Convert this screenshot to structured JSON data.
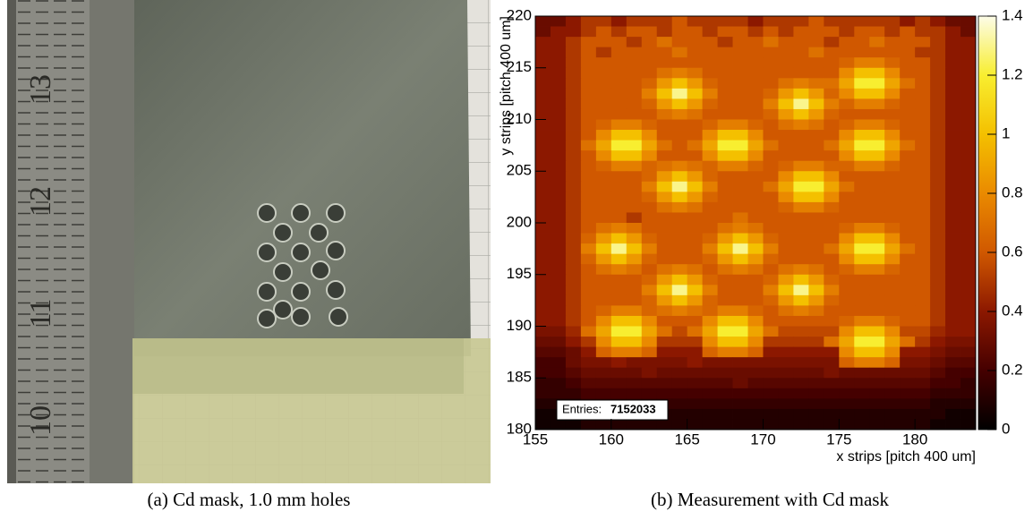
{
  "photo": {
    "ruler_labels": [
      "13",
      "12",
      "11",
      "10"
    ],
    "caption": "(a) Cd mask, 1.0 mm holes"
  },
  "chart_data": {
    "type": "heatmap",
    "caption": "(b) Measurement with Cd mask",
    "x_label": "x strips [pitch 400 um]",
    "y_label": "y strips [pitch 400 um]",
    "xlim": [
      155,
      184
    ],
    "ylim": [
      180,
      220
    ],
    "xticks": [
      155,
      160,
      165,
      170,
      175,
      180
    ],
    "yticks": [
      180,
      185,
      190,
      195,
      200,
      205,
      210,
      215,
      220
    ],
    "zlim": [
      0,
      1.4
    ],
    "zticks": [
      0,
      0.2,
      0.4,
      0.6,
      0.8,
      1,
      1.2,
      1.4
    ],
    "colorscale": [
      "#000000",
      "#450000",
      "#8c1800",
      "#d05800",
      "#ea8a00",
      "#f4c000",
      "#f8ee30",
      "#fcfce8"
    ],
    "stats_label": "Entries:",
    "entries": 7152033,
    "z": [
      [
        0.3,
        0.3,
        0.4,
        0.5,
        0.5,
        0.4,
        0.5,
        0.5,
        0.5,
        0.6,
        0.5,
        0.5,
        0.5,
        0.5,
        0.4,
        0.5,
        0.5,
        0.5,
        0.6,
        0.5,
        0.5,
        0.5,
        0.5,
        0.5,
        0.4,
        0.5,
        0.4,
        0.3,
        0.3
      ],
      [
        0.3,
        0.4,
        0.4,
        0.5,
        0.6,
        0.5,
        0.6,
        0.6,
        0.5,
        0.6,
        0.6,
        0.5,
        0.6,
        0.6,
        0.5,
        0.6,
        0.5,
        0.6,
        0.6,
        0.6,
        0.5,
        0.6,
        0.6,
        0.5,
        0.6,
        0.5,
        0.5,
        0.4,
        0.3
      ],
      [
        0.4,
        0.4,
        0.5,
        0.6,
        0.6,
        0.6,
        0.5,
        0.6,
        0.7,
        0.6,
        0.6,
        0.6,
        0.5,
        0.6,
        0.6,
        0.7,
        0.6,
        0.6,
        0.6,
        0.5,
        0.6,
        0.6,
        0.7,
        0.6,
        0.6,
        0.6,
        0.5,
        0.4,
        0.4
      ],
      [
        0.4,
        0.4,
        0.5,
        0.6,
        0.5,
        0.6,
        0.6,
        0.6,
        0.6,
        0.7,
        0.6,
        0.6,
        0.6,
        0.6,
        0.6,
        0.6,
        0.6,
        0.6,
        0.7,
        0.6,
        0.6,
        0.6,
        0.6,
        0.6,
        0.6,
        0.5,
        0.5,
        0.4,
        0.4
      ],
      [
        0.4,
        0.4,
        0.5,
        0.6,
        0.6,
        0.6,
        0.6,
        0.6,
        0.6,
        0.6,
        0.6,
        0.6,
        0.6,
        0.6,
        0.6,
        0.6,
        0.6,
        0.6,
        0.6,
        0.6,
        0.65,
        0.75,
        0.75,
        0.65,
        0.6,
        0.6,
        0.5,
        0.4,
        0.4
      ],
      [
        0.4,
        0.4,
        0.5,
        0.6,
        0.6,
        0.6,
        0.6,
        0.6,
        0.7,
        0.75,
        0.7,
        0.6,
        0.6,
        0.6,
        0.6,
        0.6,
        0.6,
        0.6,
        0.6,
        0.6,
        0.8,
        1.0,
        1.0,
        0.8,
        0.6,
        0.6,
        0.5,
        0.4,
        0.4
      ],
      [
        0.4,
        0.4,
        0.5,
        0.6,
        0.6,
        0.6,
        0.6,
        0.65,
        0.85,
        1.0,
        0.85,
        0.65,
        0.6,
        0.6,
        0.6,
        0.6,
        0.7,
        0.75,
        0.7,
        0.7,
        0.9,
        1.2,
        1.2,
        0.9,
        0.7,
        0.6,
        0.5,
        0.4,
        0.4
      ],
      [
        0.4,
        0.4,
        0.5,
        0.6,
        0.6,
        0.6,
        0.6,
        0.75,
        1.0,
        1.3,
        1.0,
        0.75,
        0.6,
        0.6,
        0.6,
        0.65,
        0.85,
        1.0,
        0.85,
        0.65,
        0.8,
        1.0,
        1.0,
        0.8,
        0.6,
        0.6,
        0.5,
        0.4,
        0.4
      ],
      [
        0.4,
        0.4,
        0.5,
        0.6,
        0.6,
        0.6,
        0.6,
        0.65,
        0.85,
        1.0,
        0.85,
        0.65,
        0.6,
        0.6,
        0.6,
        0.75,
        1.0,
        1.3,
        1.0,
        0.75,
        0.65,
        0.75,
        0.75,
        0.65,
        0.6,
        0.6,
        0.5,
        0.4,
        0.4
      ],
      [
        0.4,
        0.4,
        0.5,
        0.6,
        0.6,
        0.6,
        0.6,
        0.6,
        0.7,
        0.75,
        0.7,
        0.6,
        0.6,
        0.6,
        0.6,
        0.65,
        0.85,
        1.0,
        0.85,
        0.65,
        0.6,
        0.6,
        0.6,
        0.6,
        0.6,
        0.6,
        0.5,
        0.4,
        0.4
      ],
      [
        0.4,
        0.4,
        0.5,
        0.6,
        0.65,
        0.75,
        0.75,
        0.65,
        0.6,
        0.6,
        0.6,
        0.65,
        0.75,
        0.75,
        0.65,
        0.6,
        0.7,
        0.75,
        0.7,
        0.6,
        0.65,
        0.75,
        0.75,
        0.65,
        0.6,
        0.6,
        0.5,
        0.4,
        0.4
      ],
      [
        0.4,
        0.4,
        0.5,
        0.6,
        0.8,
        1.0,
        1.0,
        0.8,
        0.6,
        0.6,
        0.6,
        0.8,
        1.0,
        1.0,
        0.8,
        0.6,
        0.6,
        0.6,
        0.6,
        0.6,
        0.8,
        1.0,
        1.0,
        0.8,
        0.6,
        0.6,
        0.5,
        0.4,
        0.4
      ],
      [
        0.4,
        0.4,
        0.5,
        0.7,
        0.9,
        1.2,
        1.2,
        0.9,
        0.7,
        0.6,
        0.7,
        0.9,
        1.2,
        1.2,
        0.9,
        0.7,
        0.6,
        0.6,
        0.6,
        0.7,
        0.9,
        1.2,
        1.2,
        0.9,
        0.7,
        0.6,
        0.5,
        0.4,
        0.4
      ],
      [
        0.4,
        0.4,
        0.5,
        0.6,
        0.8,
        1.0,
        1.0,
        0.8,
        0.6,
        0.6,
        0.6,
        0.8,
        1.0,
        1.0,
        0.8,
        0.6,
        0.6,
        0.6,
        0.6,
        0.6,
        0.8,
        1.0,
        1.0,
        0.8,
        0.6,
        0.6,
        0.5,
        0.4,
        0.4
      ],
      [
        0.4,
        0.4,
        0.5,
        0.6,
        0.65,
        0.75,
        0.75,
        0.65,
        0.7,
        0.75,
        0.7,
        0.65,
        0.75,
        0.75,
        0.65,
        0.6,
        0.65,
        0.75,
        0.75,
        0.65,
        0.65,
        0.75,
        0.75,
        0.65,
        0.6,
        0.6,
        0.5,
        0.4,
        0.4
      ],
      [
        0.4,
        0.4,
        0.5,
        0.6,
        0.6,
        0.6,
        0.6,
        0.65,
        0.85,
        1.0,
        0.85,
        0.65,
        0.6,
        0.6,
        0.6,
        0.6,
        0.8,
        1.0,
        1.0,
        0.8,
        0.6,
        0.6,
        0.6,
        0.6,
        0.6,
        0.6,
        0.5,
        0.4,
        0.4
      ],
      [
        0.4,
        0.4,
        0.5,
        0.6,
        0.6,
        0.6,
        0.6,
        0.75,
        1.0,
        1.3,
        1.0,
        0.75,
        0.6,
        0.6,
        0.6,
        0.7,
        0.9,
        1.2,
        1.2,
        0.9,
        0.7,
        0.6,
        0.6,
        0.6,
        0.6,
        0.6,
        0.5,
        0.4,
        0.4
      ],
      [
        0.4,
        0.4,
        0.5,
        0.6,
        0.6,
        0.6,
        0.6,
        0.65,
        0.85,
        1.0,
        0.85,
        0.65,
        0.6,
        0.6,
        0.6,
        0.6,
        0.8,
        1.0,
        1.0,
        0.8,
        0.6,
        0.6,
        0.6,
        0.6,
        0.6,
        0.6,
        0.5,
        0.4,
        0.4
      ],
      [
        0.4,
        0.4,
        0.5,
        0.6,
        0.6,
        0.6,
        0.6,
        0.6,
        0.7,
        0.75,
        0.7,
        0.6,
        0.6,
        0.6,
        0.6,
        0.6,
        0.65,
        0.75,
        0.75,
        0.65,
        0.6,
        0.6,
        0.6,
        0.6,
        0.6,
        0.6,
        0.5,
        0.4,
        0.4
      ],
      [
        0.4,
        0.4,
        0.5,
        0.6,
        0.6,
        0.6,
        0.5,
        0.6,
        0.6,
        0.6,
        0.6,
        0.6,
        0.6,
        0.7,
        0.6,
        0.6,
        0.6,
        0.6,
        0.6,
        0.6,
        0.6,
        0.6,
        0.6,
        0.6,
        0.6,
        0.6,
        0.5,
        0.4,
        0.4
      ],
      [
        0.4,
        0.4,
        0.5,
        0.6,
        0.7,
        0.75,
        0.7,
        0.6,
        0.6,
        0.6,
        0.6,
        0.6,
        0.7,
        0.75,
        0.7,
        0.6,
        0.6,
        0.6,
        0.6,
        0.6,
        0.65,
        0.75,
        0.75,
        0.65,
        0.6,
        0.6,
        0.5,
        0.4,
        0.4
      ],
      [
        0.4,
        0.4,
        0.5,
        0.65,
        0.85,
        1.0,
        0.85,
        0.65,
        0.6,
        0.6,
        0.6,
        0.65,
        0.85,
        1.0,
        0.85,
        0.65,
        0.6,
        0.6,
        0.6,
        0.6,
        0.8,
        1.0,
        1.0,
        0.8,
        0.6,
        0.6,
        0.5,
        0.4,
        0.4
      ],
      [
        0.4,
        0.4,
        0.5,
        0.75,
        1.0,
        1.3,
        1.0,
        0.75,
        0.6,
        0.6,
        0.6,
        0.75,
        1.0,
        1.3,
        1.0,
        0.75,
        0.6,
        0.6,
        0.6,
        0.7,
        0.9,
        1.2,
        1.2,
        0.9,
        0.7,
        0.6,
        0.5,
        0.4,
        0.4
      ],
      [
        0.4,
        0.4,
        0.5,
        0.65,
        0.85,
        1.0,
        0.85,
        0.65,
        0.6,
        0.6,
        0.6,
        0.65,
        0.85,
        1.0,
        0.85,
        0.65,
        0.6,
        0.6,
        0.6,
        0.6,
        0.8,
        1.0,
        1.0,
        0.8,
        0.6,
        0.6,
        0.5,
        0.4,
        0.4
      ],
      [
        0.4,
        0.4,
        0.5,
        0.6,
        0.7,
        0.75,
        0.7,
        0.6,
        0.7,
        0.75,
        0.7,
        0.6,
        0.7,
        0.75,
        0.7,
        0.6,
        0.7,
        0.75,
        0.7,
        0.6,
        0.65,
        0.75,
        0.75,
        0.65,
        0.6,
        0.6,
        0.5,
        0.4,
        0.4
      ],
      [
        0.4,
        0.4,
        0.5,
        0.6,
        0.6,
        0.6,
        0.6,
        0.65,
        0.85,
        1.0,
        0.85,
        0.65,
        0.6,
        0.6,
        0.6,
        0.65,
        0.85,
        1.0,
        0.85,
        0.65,
        0.6,
        0.6,
        0.6,
        0.6,
        0.6,
        0.6,
        0.5,
        0.4,
        0.4
      ],
      [
        0.4,
        0.4,
        0.5,
        0.6,
        0.6,
        0.6,
        0.6,
        0.75,
        1.0,
        1.3,
        1.0,
        0.75,
        0.6,
        0.6,
        0.6,
        0.75,
        1.0,
        1.3,
        1.0,
        0.75,
        0.6,
        0.6,
        0.6,
        0.6,
        0.6,
        0.6,
        0.5,
        0.4,
        0.4
      ],
      [
        0.4,
        0.4,
        0.5,
        0.6,
        0.6,
        0.6,
        0.6,
        0.65,
        0.85,
        1.0,
        0.85,
        0.65,
        0.6,
        0.6,
        0.6,
        0.65,
        0.85,
        1.0,
        0.85,
        0.65,
        0.6,
        0.6,
        0.6,
        0.6,
        0.6,
        0.6,
        0.5,
        0.4,
        0.4
      ],
      [
        0.4,
        0.4,
        0.5,
        0.6,
        0.65,
        0.75,
        0.75,
        0.65,
        0.7,
        0.75,
        0.7,
        0.65,
        0.75,
        0.75,
        0.65,
        0.6,
        0.7,
        0.75,
        0.7,
        0.6,
        0.6,
        0.6,
        0.6,
        0.6,
        0.6,
        0.6,
        0.5,
        0.4,
        0.4
      ],
      [
        0.4,
        0.4,
        0.5,
        0.6,
        0.8,
        1.0,
        1.0,
        0.8,
        0.6,
        0.6,
        0.6,
        0.8,
        1.0,
        1.0,
        0.8,
        0.6,
        0.6,
        0.6,
        0.6,
        0.6,
        0.65,
        0.75,
        0.75,
        0.65,
        0.6,
        0.6,
        0.5,
        0.4,
        0.4
      ],
      [
        0.35,
        0.35,
        0.45,
        0.7,
        0.9,
        1.2,
        1.2,
        0.9,
        0.7,
        0.55,
        0.7,
        0.9,
        1.2,
        1.2,
        0.9,
        0.7,
        0.55,
        0.55,
        0.55,
        0.55,
        0.8,
        1.0,
        1.0,
        0.8,
        0.55,
        0.55,
        0.45,
        0.4,
        0.4
      ],
      [
        0.3,
        0.3,
        0.4,
        0.5,
        0.8,
        1.0,
        1.0,
        0.8,
        0.5,
        0.5,
        0.5,
        0.8,
        1.0,
        1.0,
        0.8,
        0.5,
        0.5,
        0.5,
        0.5,
        0.7,
        0.9,
        1.2,
        1.2,
        0.9,
        0.7,
        0.5,
        0.4,
        0.35,
        0.35
      ],
      [
        0.25,
        0.25,
        0.3,
        0.4,
        0.65,
        0.75,
        0.75,
        0.65,
        0.4,
        0.4,
        0.4,
        0.65,
        0.75,
        0.75,
        0.65,
        0.4,
        0.4,
        0.4,
        0.4,
        0.4,
        0.8,
        1.0,
        1.0,
        0.8,
        0.4,
        0.4,
        0.35,
        0.3,
        0.3
      ],
      [
        0.2,
        0.2,
        0.3,
        0.35,
        0.35,
        0.4,
        0.35,
        0.35,
        0.35,
        0.35,
        0.4,
        0.35,
        0.35,
        0.35,
        0.35,
        0.35,
        0.35,
        0.35,
        0.35,
        0.35,
        0.65,
        0.75,
        0.75,
        0.65,
        0.35,
        0.35,
        0.3,
        0.25,
        0.25
      ],
      [
        0.2,
        0.2,
        0.25,
        0.3,
        0.3,
        0.3,
        0.3,
        0.35,
        0.3,
        0.3,
        0.3,
        0.3,
        0.3,
        0.3,
        0.3,
        0.3,
        0.3,
        0.3,
        0.3,
        0.35,
        0.3,
        0.3,
        0.3,
        0.3,
        0.3,
        0.3,
        0.25,
        0.2,
        0.2
      ],
      [
        0.15,
        0.15,
        0.2,
        0.25,
        0.25,
        0.25,
        0.25,
        0.25,
        0.25,
        0.25,
        0.25,
        0.25,
        0.25,
        0.3,
        0.25,
        0.25,
        0.25,
        0.25,
        0.25,
        0.25,
        0.25,
        0.25,
        0.25,
        0.25,
        0.25,
        0.25,
        0.2,
        0.2,
        0.15
      ],
      [
        0.15,
        0.15,
        0.15,
        0.2,
        0.2,
        0.2,
        0.2,
        0.2,
        0.2,
        0.2,
        0.2,
        0.2,
        0.2,
        0.2,
        0.2,
        0.2,
        0.2,
        0.2,
        0.2,
        0.2,
        0.2,
        0.2,
        0.2,
        0.2,
        0.2,
        0.2,
        0.15,
        0.15,
        0.15
      ],
      [
        0.1,
        0.1,
        0.1,
        0.15,
        0.15,
        0.15,
        0.15,
        0.15,
        0.15,
        0.15,
        0.15,
        0.15,
        0.15,
        0.15,
        0.15,
        0.15,
        0.15,
        0.15,
        0.15,
        0.15,
        0.15,
        0.15,
        0.15,
        0.15,
        0.15,
        0.15,
        0.1,
        0.1,
        0.1
      ],
      [
        0.05,
        0.05,
        0.1,
        0.1,
        0.1,
        0.1,
        0.1,
        0.1,
        0.1,
        0.1,
        0.1,
        0.1,
        0.1,
        0.1,
        0.1,
        0.1,
        0.1,
        0.1,
        0.1,
        0.1,
        0.1,
        0.1,
        0.1,
        0.1,
        0.1,
        0.1,
        0.1,
        0.05,
        0.05
      ],
      [
        0.05,
        0.05,
        0.05,
        0.1,
        0.1,
        0.1,
        0.1,
        0.1,
        0.1,
        0.1,
        0.1,
        0.1,
        0.1,
        0.1,
        0.1,
        0.1,
        0.1,
        0.1,
        0.1,
        0.1,
        0.1,
        0.1,
        0.1,
        0.1,
        0.1,
        0.1,
        0.05,
        0.05,
        0.05
      ]
    ]
  }
}
